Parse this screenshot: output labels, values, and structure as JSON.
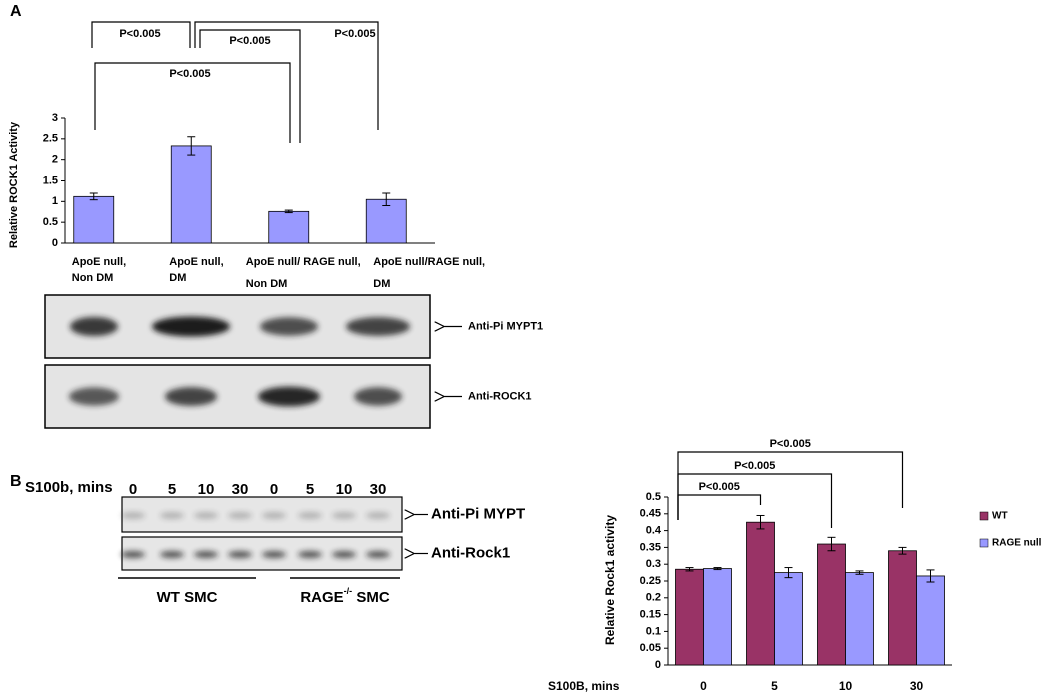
{
  "panel_labels": [
    "A",
    "B"
  ],
  "chart_data": [
    {
      "type": "bar",
      "ylabel": "Relative ROCK1 Activity",
      "categories": [
        [
          "ApoE null,",
          "Non DM"
        ],
        [
          "ApoE null,",
          "DM"
        ],
        [
          "ApoE null/ RAGE null,",
          "Non DM"
        ],
        [
          "ApoE null/RAGE null,",
          "DM"
        ]
      ],
      "values": [
        1.12,
        2.33,
        0.76,
        1.05
      ],
      "errors": [
        0.08,
        0.22,
        0.03,
        0.15
      ],
      "color": "#9999ff",
      "ylim": [
        0,
        3
      ],
      "yticks": [
        0,
        0.5,
        1,
        1.5,
        2,
        2.5,
        3
      ],
      "brackets": [
        {
          "between": [
            0,
            1
          ],
          "label": "P<0.005"
        },
        {
          "between": [
            1,
            3
          ],
          "label": "P<0.005"
        },
        {
          "between": [
            1,
            2
          ],
          "label": "P<0.005"
        },
        {
          "between": [
            0,
            2
          ],
          "label": "P<0.005"
        }
      ]
    },
    {
      "type": "grouped-bar",
      "ylabel": "Relative Rock1 activity",
      "xlabel": "S100B, mins",
      "categories": [
        "0",
        "5",
        "10",
        "30"
      ],
      "series": [
        {
          "name": "WT",
          "color": "#993366",
          "values": [
            0.285,
            0.425,
            0.36,
            0.34
          ],
          "errors": [
            0.005,
            0.02,
            0.02,
            0.01
          ]
        },
        {
          "name": "RAGE null",
          "color": "#9999ff",
          "values": [
            0.287,
            0.275,
            0.275,
            0.265
          ],
          "errors": [
            0.003,
            0.015,
            0.005,
            0.018
          ]
        }
      ],
      "ylim": [
        0,
        0.5
      ],
      "yticks": [
        0,
        0.05,
        0.1,
        0.15,
        0.2,
        0.25,
        0.3,
        0.35,
        0.4,
        0.45,
        0.5
      ],
      "legend": "right",
      "brackets": [
        {
          "between": [
            0,
            3
          ],
          "label": "P<0.005"
        },
        {
          "between": [
            0,
            2
          ],
          "label": "P<0.005"
        },
        {
          "between": [
            0,
            1
          ],
          "label": "P<0.005"
        }
      ]
    }
  ],
  "blots": [
    {
      "labels": [
        "Anti-Pi MYPT1",
        "Anti-ROCK1"
      ]
    },
    {
      "title": "S100b, mins",
      "lanes": [
        "0",
        "5",
        "10",
        "30",
        "0",
        "5",
        "10",
        "30"
      ],
      "labels": [
        "Anti-Pi MYPT",
        "Anti-Rock1"
      ],
      "groups": [
        [
          "WT SMC"
        ],
        [
          "RAGE",
          "-/-",
          " SMC"
        ]
      ]
    }
  ]
}
